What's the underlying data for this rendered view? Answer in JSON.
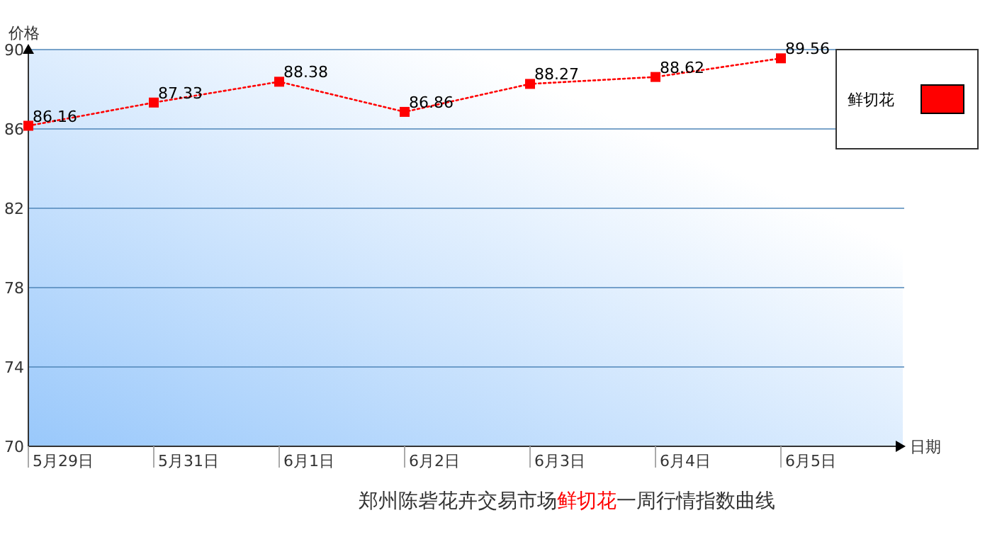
{
  "chart_data": {
    "type": "line",
    "title": "郑州陈砦花卉交易市场鲜切花一周行情指数曲线",
    "xlabel": "日期",
    "ylabel": "价格",
    "categories": [
      "5月29日",
      "5月31日",
      "6月1日",
      "6月2日",
      "6月3日",
      "6月4日",
      "6月5日"
    ],
    "series": [
      {
        "name": "鲜切花",
        "color": "#ff0000",
        "values": [
          86.16,
          87.33,
          88.38,
          86.86,
          88.27,
          88.62,
          89.56
        ]
      }
    ],
    "ylim": [
      70,
      90
    ],
    "yticks": [
      70,
      74,
      78,
      82,
      86,
      90
    ],
    "grid": "y",
    "legend": "top right",
    "data_labels": true,
    "marker": "square",
    "line_style": "dotted"
  }
}
